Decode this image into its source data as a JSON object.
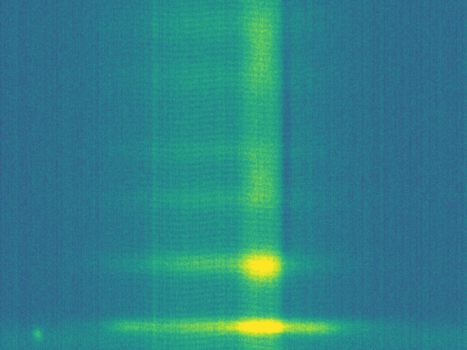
{
  "image": {
    "kind": "spectrogram",
    "colormap": "viridis",
    "colors": {
      "background": "#2c6f8e",
      "low": "#3b528b",
      "mid": "#21918c",
      "high": "#5ec962",
      "peak": "#fde725"
    },
    "axes_visible": false,
    "text_visible": false
  }
}
